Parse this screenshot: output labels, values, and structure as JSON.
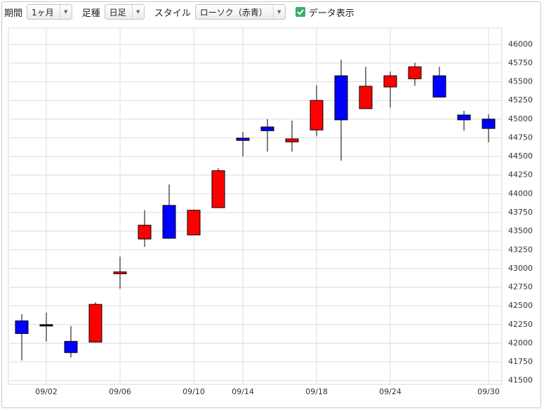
{
  "toolbar": {
    "period_label": "期間",
    "period_value": "1ヶ月",
    "bar_label": "足種",
    "bar_value": "日足",
    "style_label": "スタイル",
    "style_value": "ローソク（赤青）",
    "show_data": "データ表示"
  },
  "chart_data": {
    "type": "candlestick",
    "categories": [
      null,
      "09/02",
      null,
      null,
      "09/06",
      null,
      null,
      "09/10",
      null,
      "09/14",
      null,
      null,
      "09/18",
      null,
      null,
      "09/24",
      null,
      null,
      null,
      "09/30"
    ],
    "open": [
      42300,
      42240,
      42025,
      42015,
      42930,
      43395,
      43845,
      43450,
      43815,
      44745,
      44895,
      44695,
      44855,
      45580,
      45140,
      45430,
      45540,
      45580,
      45055,
      45000
    ],
    "high": [
      42390,
      42410,
      42230,
      42550,
      43160,
      43780,
      44125,
      43790,
      44340,
      44830,
      45000,
      44980,
      45455,
      45795,
      45700,
      45635,
      45755,
      45700,
      45110,
      45065
    ],
    "low": [
      41770,
      42025,
      41810,
      42010,
      42730,
      43290,
      43400,
      43450,
      43815,
      44500,
      44565,
      44565,
      44770,
      44445,
      45140,
      45155,
      45445,
      45295,
      44845,
      44690
    ],
    "close": [
      42130,
      42240,
      41875,
      42520,
      42955,
      43580,
      43405,
      43780,
      44310,
      44715,
      44845,
      44735,
      45250,
      44990,
      45440,
      45580,
      45700,
      45295,
      44990,
      44875
    ],
    "up_color": "#ff0000",
    "down_color": "#0000ff",
    "doji_color": "#000000",
    "ylim": [
      41450,
      46200
    ],
    "yticks": [
      41500,
      41750,
      42000,
      42250,
      42500,
      42750,
      43000,
      43250,
      43500,
      43750,
      44000,
      44250,
      44500,
      44750,
      45000,
      45250,
      45500,
      45750,
      46000
    ],
    "grid": true
  }
}
